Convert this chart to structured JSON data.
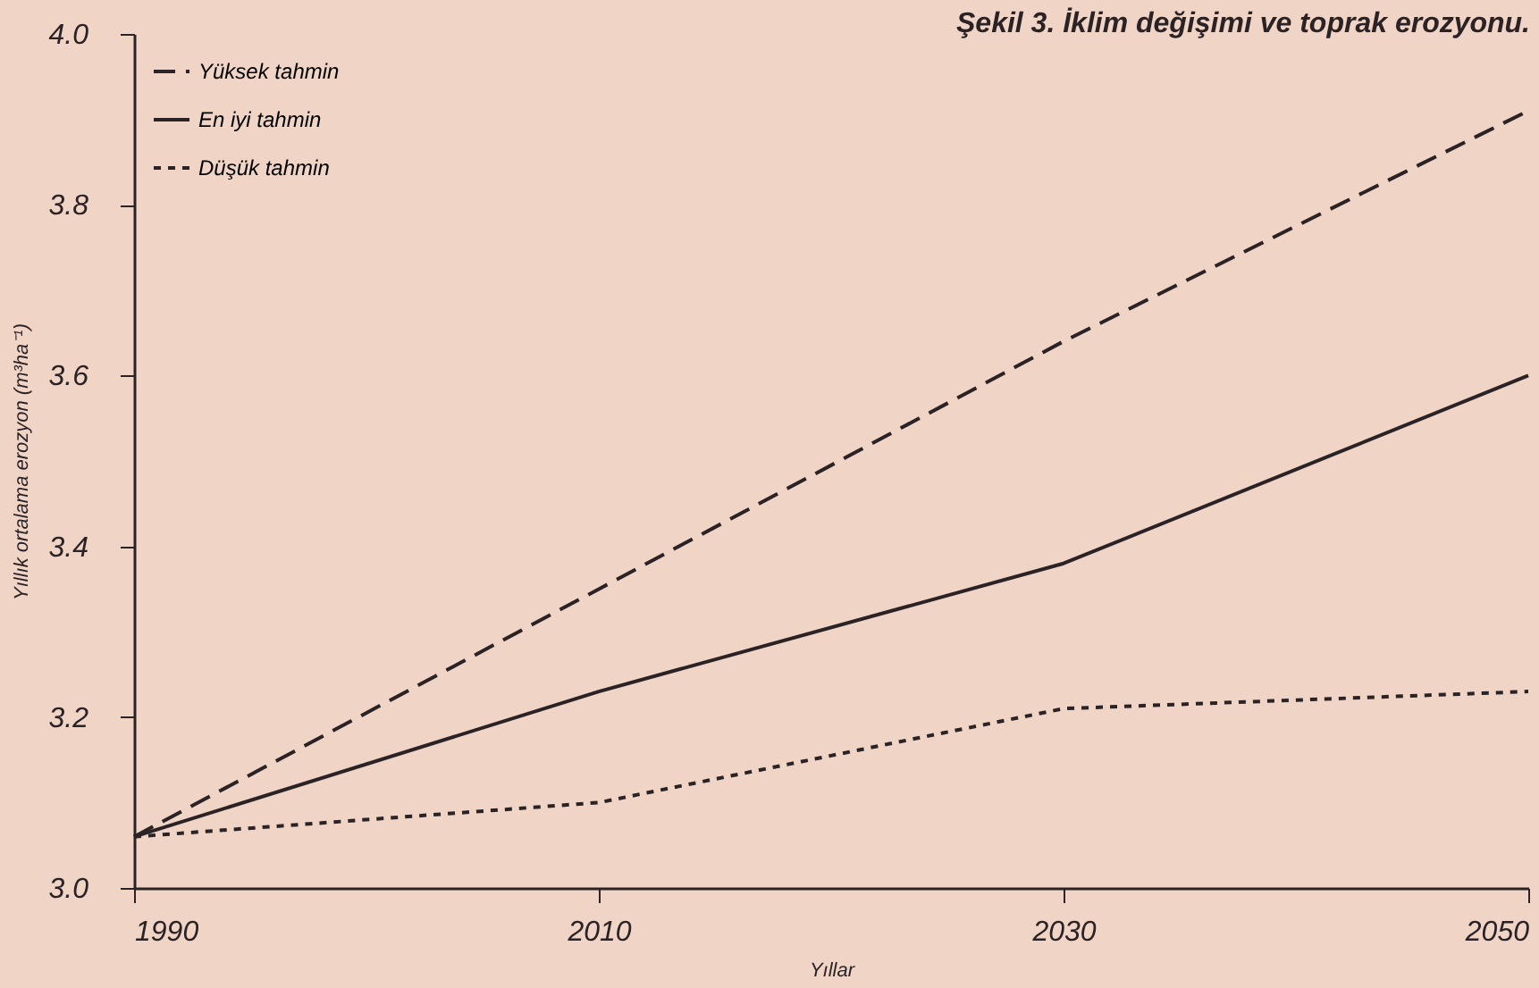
{
  "chart_data": {
    "type": "line",
    "title": "Şekil 3. İklim değişimi ve toprak erozyonu.",
    "xlabel": "Yıllar",
    "ylabel": "Yıllık ortalama erozyon (m³ha⁻¹)",
    "x": [
      1990,
      2010,
      2030,
      2050
    ],
    "series": [
      {
        "name": "Yüksek tahmin",
        "color": "#2a2224",
        "line_style": "dashed",
        "values": [
          3.06,
          3.35,
          3.64,
          3.91
        ]
      },
      {
        "name": "En iyi tahmin",
        "color": "#2a2224",
        "line_style": "solid",
        "values": [
          3.06,
          3.23,
          3.38,
          3.6
        ]
      },
      {
        "name": "Düşük tahmin",
        "color": "#2a2224",
        "line_style": "dotted",
        "values": [
          3.06,
          3.1,
          3.21,
          3.23
        ]
      }
    ],
    "xlim": [
      1990,
      2050
    ],
    "xticks": [
      1990,
      2010,
      2030,
      2050
    ],
    "ylim": [
      3.0,
      4.0
    ],
    "yticks": [
      {
        "value": 3.0,
        "label": "3.0"
      },
      {
        "value": 3.2,
        "label": "3.2"
      },
      {
        "value": 3.4,
        "label": "3.4"
      },
      {
        "value": 3.6,
        "label": "3.6"
      },
      {
        "value": 3.8,
        "label": "3.8"
      },
      {
        "value": 4.0,
        "label": "4.0"
      }
    ],
    "grid": false,
    "legend": "top left",
    "marker": "none"
  }
}
